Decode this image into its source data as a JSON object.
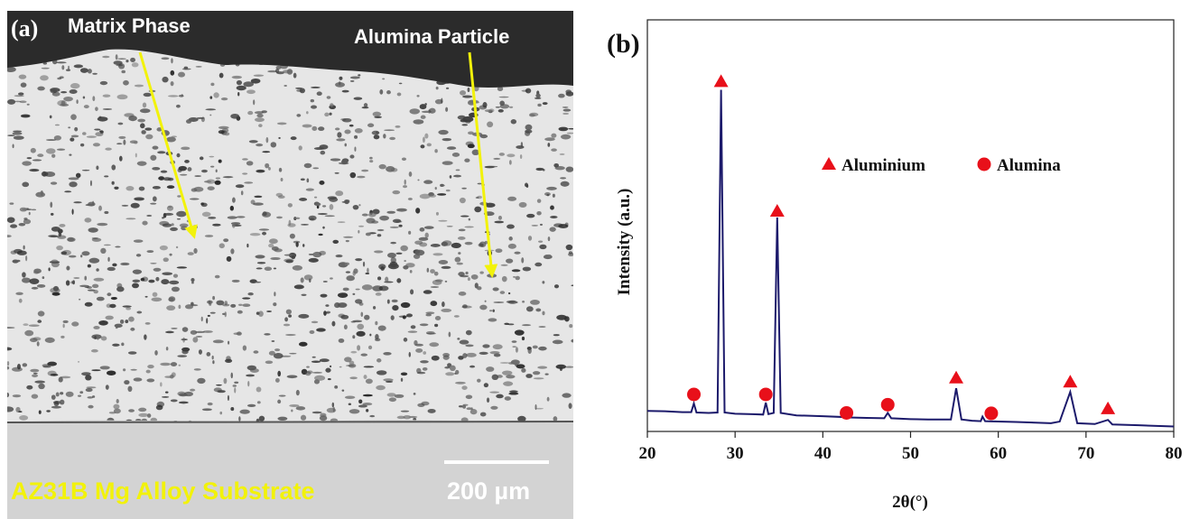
{
  "panel_a": {
    "label": "(a)",
    "matrix_label": "Matrix Phase",
    "particle_label": "Alumina Particle",
    "substrate_label": "AZ31B Mg Alloy Substrate",
    "scale_label": "200 µm"
  },
  "chart_data": {
    "type": "line",
    "panel_label": "(b)",
    "xlabel": "2θ(°)",
    "ylabel": "Intensity (a.u.)",
    "color": "#1c1a6b",
    "x": [
      20,
      22,
      24,
      25,
      25.3,
      25.6,
      27,
      28,
      28.4,
      28.8,
      30,
      32,
      33.2,
      33.5,
      33.8,
      34.4,
      34.8,
      35.2,
      37,
      40,
      42.4,
      42.7,
      43,
      45,
      47,
      47.4,
      47.8,
      50,
      52,
      54.6,
      55.2,
      55.8,
      57,
      58,
      58.2,
      58.5,
      62,
      66,
      67,
      68.2,
      69,
      71,
      72.5,
      73,
      76,
      80
    ],
    "values": [
      5.0,
      4.9,
      4.7,
      4.7,
      6.8,
      4.6,
      4.5,
      4.6,
      83,
      4.6,
      4.3,
      4.2,
      4.1,
      7.0,
      4.2,
      4.5,
      52,
      4.5,
      3.9,
      3.7,
      3.5,
      4.6,
      3.4,
      3.3,
      3.2,
      4.5,
      3.2,
      3.0,
      2.9,
      2.9,
      10.5,
      2.9,
      2.6,
      2.5,
      3.6,
      2.5,
      2.3,
      2.0,
      2.4,
      9.6,
      2.0,
      1.8,
      2.8,
      1.7,
      1.5,
      1.2
    ],
    "markers": [
      {
        "name": "Aluminium",
        "color": "#e8101a",
        "shape": "triangle",
        "x": [
          28.4,
          34.8,
          55.2,
          68.2,
          72.5
        ],
        "values": [
          85,
          53.5,
          13,
          12,
          5.5
        ]
      },
      {
        "name": "Alumina",
        "color": "#e8101a",
        "shape": "circle",
        "x": [
          25.3,
          33.5,
          42.7,
          47.4,
          59.2
        ],
        "values": [
          9,
          9,
          4.5,
          6.5,
          4.4
        ]
      }
    ],
    "xlim": [
      20,
      80
    ],
    "xticks": [
      20,
      30,
      40,
      50,
      60,
      70,
      80
    ],
    "ylim": [
      0,
      100
    ]
  }
}
